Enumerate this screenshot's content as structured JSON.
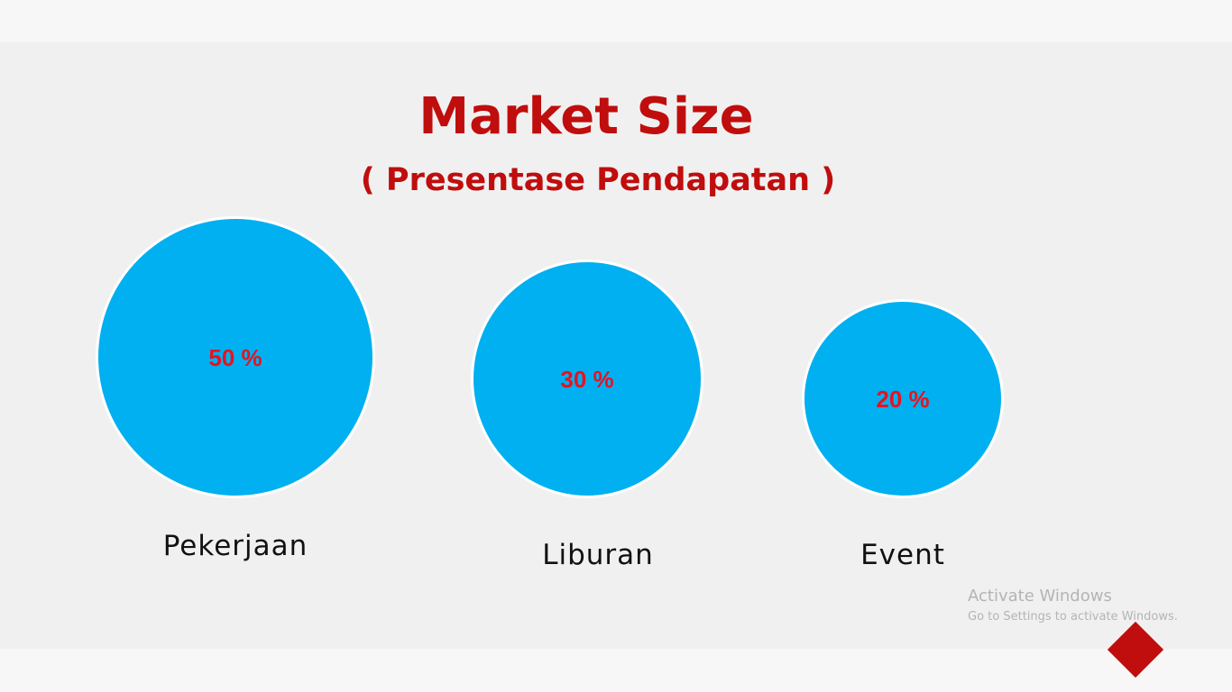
{
  "slide": {
    "title": "Market Size",
    "subtitle": "( Presentase Pendapatan )"
  },
  "colors": {
    "accent": "#c00d0d",
    "bubble_fill": "#00b0f0",
    "value_text": "#e8121f"
  },
  "segments": [
    {
      "label": "Pekerjaan",
      "value_text": "50 %",
      "share": 50
    },
    {
      "label": "Liburan",
      "value_text": "30 %",
      "share": 30
    },
    {
      "label": "Event",
      "value_text": "20 %",
      "share": 20
    }
  ],
  "watermark": {
    "title": "Activate Windows",
    "subtitle": "Go to Settings to activate Windows."
  },
  "decor_icon": "diamond-shape-icon"
}
